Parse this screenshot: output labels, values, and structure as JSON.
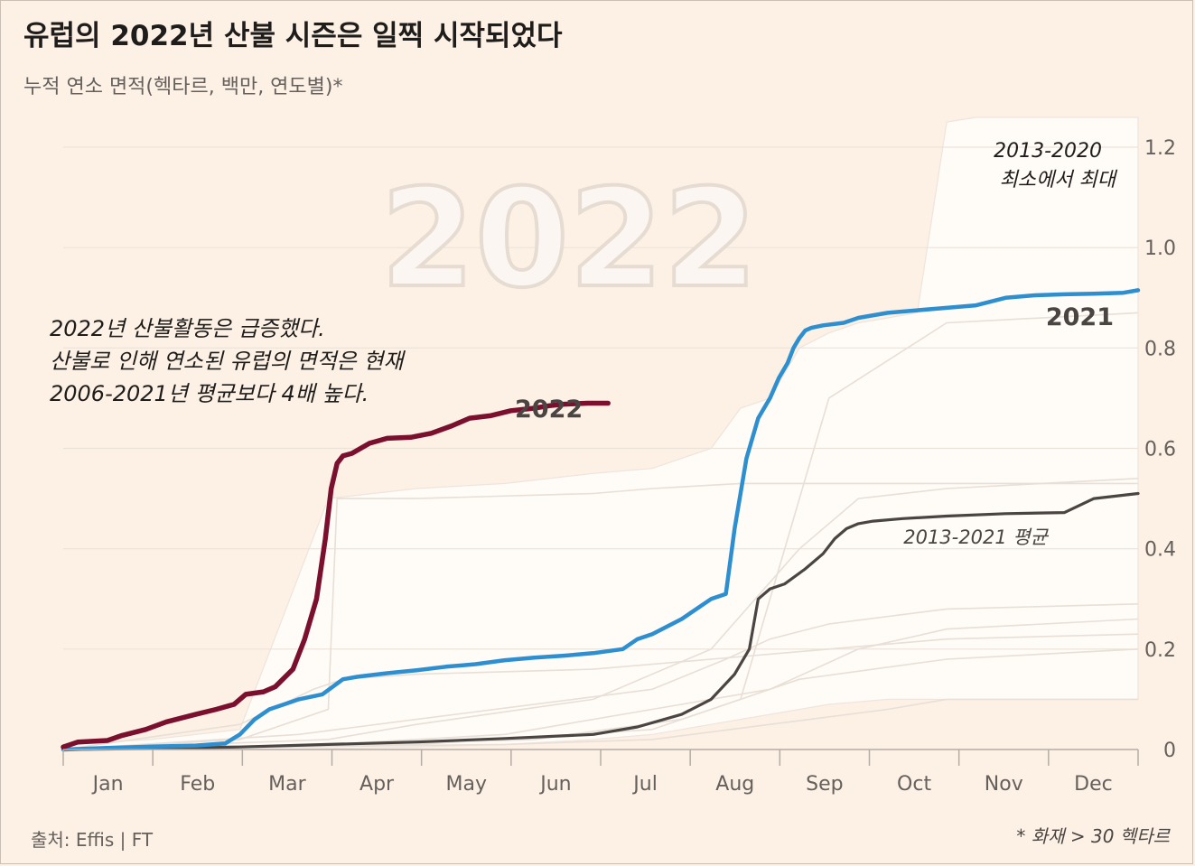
{
  "title": "유럽의 2022년 산불 시즌은 일찍 시작되었다",
  "subtitle": "누적 연소 면적(헥타르, 백만, 연도별)*",
  "source": "출처: Effis | FT",
  "footnote": "* 화재 > 30 헥타르",
  "colors": {
    "background": "#fdf1e6",
    "series_2022": "#7a0f2e",
    "series_2021": "#2e8fd0",
    "series_avg": "#4a4542",
    "range_band": "#fffbf7",
    "grid": "#ebe2d8",
    "other_years": "#e8dfd6"
  },
  "chart_data": {
    "type": "line",
    "title": "유럽의 2022년 산불 시즌은 일찍 시작되었다",
    "ylabel": "누적 연소 면적(헥타르, 백만, 연도별)*",
    "categories": [
      "Jan",
      "Feb",
      "Mar",
      "Apr",
      "May",
      "Jun",
      "Jul",
      "Aug",
      "Sep",
      "Oct",
      "Nov",
      "Dec"
    ],
    "x_unit": "day of year",
    "xlim": [
      0,
      365
    ],
    "ylim": [
      0,
      1.2
    ],
    "y_ticks": [
      0,
      0.2,
      0.4,
      0.6,
      0.8,
      1.0,
      1.2
    ],
    "y_tick_labels": [
      "0",
      "0.2",
      "0.4",
      "0.6",
      "0.8",
      "1.0",
      "1.2"
    ],
    "watermark": "2022",
    "series": [
      {
        "name": "2022",
        "label": "2022",
        "x": [
          0,
          5,
          15,
          20,
          28,
          35,
          45,
          52,
          58,
          62,
          68,
          72,
          78,
          82,
          86,
          89,
          91,
          93,
          95,
          98,
          101,
          104,
          110,
          118,
          125,
          132,
          138,
          145,
          152,
          160,
          165,
          170,
          178,
          185
        ],
        "y": [
          0.005,
          0.015,
          0.018,
          0.028,
          0.04,
          0.055,
          0.07,
          0.08,
          0.09,
          0.11,
          0.115,
          0.125,
          0.16,
          0.22,
          0.3,
          0.42,
          0.52,
          0.57,
          0.585,
          0.59,
          0.6,
          0.61,
          0.62,
          0.622,
          0.63,
          0.645,
          0.66,
          0.665,
          0.675,
          0.68,
          0.685,
          0.688,
          0.69,
          0.69
        ]
      },
      {
        "name": "2021",
        "label": "2021",
        "x": [
          0,
          15,
          30,
          45,
          55,
          60,
          65,
          70,
          75,
          80,
          88,
          95,
          100,
          110,
          120,
          130,
          140,
          150,
          160,
          170,
          180,
          190,
          195,
          200,
          210,
          220,
          225,
          228,
          232,
          236,
          238,
          240,
          243,
          246,
          248,
          250,
          252,
          254,
          258,
          265,
          270,
          280,
          290,
          300,
          310,
          320,
          330,
          340,
          350,
          360,
          365
        ],
        "y": [
          0.0,
          0.003,
          0.006,
          0.008,
          0.012,
          0.03,
          0.06,
          0.08,
          0.09,
          0.1,
          0.11,
          0.14,
          0.145,
          0.152,
          0.158,
          0.165,
          0.17,
          0.178,
          0.183,
          0.187,
          0.192,
          0.2,
          0.22,
          0.23,
          0.26,
          0.3,
          0.31,
          0.44,
          0.58,
          0.66,
          0.68,
          0.7,
          0.74,
          0.77,
          0.8,
          0.82,
          0.835,
          0.84,
          0.845,
          0.85,
          0.86,
          0.87,
          0.875,
          0.88,
          0.885,
          0.9,
          0.905,
          0.907,
          0.908,
          0.91,
          0.915
        ]
      },
      {
        "name": "2013-2021 평균",
        "label": "2013-2021 평균",
        "x": [
          0,
          30,
          60,
          90,
          120,
          150,
          180,
          195,
          210,
          220,
          228,
          233,
          236,
          240,
          245,
          252,
          258,
          262,
          266,
          270,
          275,
          285,
          300,
          320,
          340,
          350,
          365
        ],
        "y": [
          0.0,
          0.002,
          0.005,
          0.01,
          0.015,
          0.022,
          0.03,
          0.045,
          0.07,
          0.1,
          0.15,
          0.2,
          0.3,
          0.32,
          0.33,
          0.36,
          0.39,
          0.42,
          0.44,
          0.45,
          0.455,
          0.46,
          0.465,
          0.47,
          0.472,
          0.5,
          0.51
        ]
      }
    ],
    "range_band": {
      "name": "2013-2020 최소에서 최대",
      "x": [
        0,
        30,
        60,
        90,
        120,
        150,
        180,
        200,
        210,
        220,
        230,
        240,
        250,
        260,
        270,
        280,
        290,
        300,
        310,
        320,
        330,
        340,
        350,
        360,
        365
      ],
      "max": [
        0.01,
        0.02,
        0.04,
        0.5,
        0.52,
        0.53,
        0.55,
        0.56,
        0.58,
        0.6,
        0.68,
        0.7,
        0.8,
        0.83,
        0.85,
        0.86,
        0.87,
        1.25,
        1.26,
        1.26,
        1.26,
        1.26,
        1.26,
        1.26,
        1.26
      ],
      "min": [
        0.0,
        0.0,
        0.0,
        0.002,
        0.005,
        0.01,
        0.02,
        0.03,
        0.04,
        0.05,
        0.06,
        0.07,
        0.08,
        0.09,
        0.095,
        0.1,
        0.1,
        0.1,
        0.1,
        0.1,
        0.1,
        0.1,
        0.1,
        0.1,
        0.1
      ]
    },
    "other_years": [
      {
        "x": [
          0,
          60,
          90,
          93,
          120,
          180,
          200,
          230,
          260,
          300,
          365
        ],
        "y": [
          0.0,
          0.02,
          0.08,
          0.5,
          0.5,
          0.51,
          0.52,
          0.53,
          0.53,
          0.53,
          0.53
        ]
      },
      {
        "x": [
          0,
          90,
          120,
          180,
          220,
          250,
          270,
          300,
          365
        ],
        "y": [
          0.0,
          0.02,
          0.05,
          0.1,
          0.2,
          0.4,
          0.5,
          0.52,
          0.54
        ]
      },
      {
        "x": [
          0,
          80,
          120,
          200,
          225,
          240,
          260,
          300,
          365
        ],
        "y": [
          0.0,
          0.03,
          0.06,
          0.12,
          0.18,
          0.22,
          0.25,
          0.28,
          0.29
        ]
      },
      {
        "x": [
          0,
          90,
          150,
          200,
          240,
          270,
          300,
          365
        ],
        "y": [
          0.0,
          0.01,
          0.03,
          0.08,
          0.12,
          0.2,
          0.24,
          0.26
        ]
      },
      {
        "x": [
          0,
          100,
          160,
          210,
          250,
          300,
          365
        ],
        "y": [
          0.0,
          0.01,
          0.02,
          0.06,
          0.14,
          0.18,
          0.2
        ]
      },
      {
        "x": [
          0,
          60,
          85,
          95,
          120,
          180,
          220,
          260,
          300,
          365
        ],
        "y": [
          0.0,
          0.05,
          0.12,
          0.14,
          0.15,
          0.16,
          0.18,
          0.2,
          0.22,
          0.23
        ]
      },
      {
        "x": [
          0,
          120,
          200,
          230,
          260,
          300,
          365
        ],
        "y": [
          0.0,
          0.01,
          0.04,
          0.1,
          0.7,
          0.85,
          0.87
        ]
      },
      {
        "x": [
          0,
          150,
          200,
          240,
          280,
          300,
          365
        ],
        "y": [
          0.0,
          0.01,
          0.02,
          0.05,
          0.08,
          0.1,
          0.1
        ]
      }
    ],
    "annotations": [
      {
        "text": "2022년 산불활동은 급증했다.",
        "anchor": "left-middle"
      },
      {
        "text": "산불로 인해 연소된 유럽의 면적은 현재",
        "anchor": "left-middle"
      },
      {
        "text": "2006-2021년 평균보다 4배 높다.",
        "anchor": "left-middle"
      },
      {
        "text": "2013-2020",
        "anchor": "top-right"
      },
      {
        "text": "최소에서 최대",
        "anchor": "top-right"
      },
      {
        "text": "2021",
        "anchor": "right"
      },
      {
        "text": "2022",
        "anchor": "end-of-series"
      },
      {
        "text": "2013-2021 평균",
        "anchor": "right"
      }
    ]
  }
}
